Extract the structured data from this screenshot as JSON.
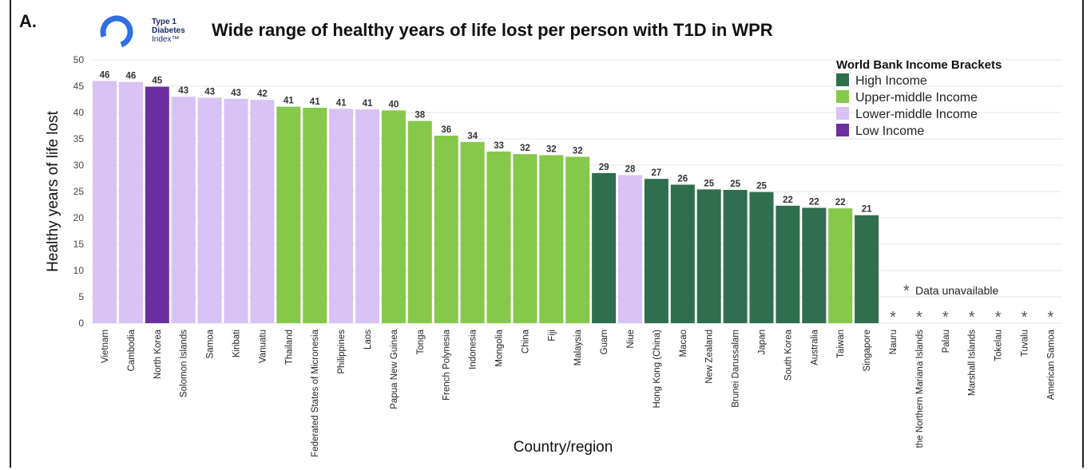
{
  "panel_label": "A.",
  "logo": {
    "line1": "Type 1",
    "line2": "Diabetes",
    "line3": "Index™"
  },
  "colors": {
    "High Income": "#2f6e4e",
    "Upper-middle Income": "#86c84a",
    "Lower-middle Income": "#d8c2f3",
    "Low Income": "#6b2fa0",
    "ring": "#2f6fe0"
  },
  "legend_title": "World Bank Income Brackets",
  "legend": [
    "High Income",
    "Upper-middle Income",
    "Lower-middle Income",
    "Low Income"
  ],
  "unavailable_marker": "*",
  "unavailable_note": "Data unavailable",
  "chart_data": {
    "type": "bar",
    "title": "Wide range of healthy years of life lost per person with T1D in WPR",
    "xlabel": "Country/region",
    "ylabel": "Healthy years of life lost",
    "ylim": [
      0,
      50
    ],
    "yticks": [
      0,
      5,
      10,
      15,
      20,
      25,
      30,
      35,
      40,
      45,
      50
    ],
    "grid": true,
    "legend_position": "top-right",
    "categories": [
      "Vietnam",
      "Cambodia",
      "North Korea",
      "Solomon Islands",
      "Samoa",
      "Kiribati",
      "Vanuatu",
      "Thailand",
      "Federated States of Micronesia",
      "Philippines",
      "Laos",
      "Papua New Guinea",
      "Tonga",
      "French Polynesia",
      "Indonesia",
      "Mongolia",
      "China",
      "Fiji",
      "Malaysia",
      "Guam",
      "Niue",
      "Hong Kong (China)",
      "Macao",
      "New Zealand",
      "Brunei Darussalam",
      "Japan",
      "South Korea",
      "Australia",
      "Taiwan",
      "Singapore",
      "Nauru",
      "the Northern Mariana Islands",
      "Palau",
      "Marshall Islands",
      "Tokelau",
      "Tuvalu",
      "American Samoa"
    ],
    "values": [
      46,
      46,
      45,
      43,
      43,
      43,
      42,
      41,
      41,
      41,
      41,
      40,
      38,
      36,
      34,
      33,
      32,
      32,
      32,
      29,
      28,
      27,
      26,
      25,
      25,
      25,
      22,
      22,
      22,
      21,
      null,
      null,
      null,
      null,
      null,
      null,
      null
    ],
    "bar_heights": [
      46.0,
      45.8,
      44.9,
      43.0,
      42.8,
      42.6,
      42.4,
      41.1,
      40.9,
      40.7,
      40.6,
      40.4,
      38.4,
      35.6,
      34.4,
      32.6,
      32.1,
      31.9,
      31.6,
      28.5,
      28.1,
      27.4,
      26.3,
      25.4,
      25.3,
      24.9,
      22.3,
      21.9,
      21.8,
      20.5,
      null,
      null,
      null,
      null,
      null,
      null,
      null
    ],
    "income_group": [
      "Lower-middle Income",
      "Lower-middle Income",
      "Low Income",
      "Lower-middle Income",
      "Lower-middle Income",
      "Lower-middle Income",
      "Lower-middle Income",
      "Upper-middle Income",
      "Upper-middle Income",
      "Lower-middle Income",
      "Lower-middle Income",
      "Upper-middle Income",
      "Upper-middle Income",
      "Upper-middle Income",
      "Upper-middle Income",
      "Upper-middle Income",
      "Upper-middle Income",
      "Upper-middle Income",
      "Upper-middle Income",
      "High Income",
      "Lower-middle Income",
      "High Income",
      "High Income",
      "High Income",
      "High Income",
      "High Income",
      "High Income",
      "High Income",
      "Upper-middle Income",
      "High Income",
      null,
      null,
      null,
      null,
      null,
      null,
      null
    ]
  }
}
